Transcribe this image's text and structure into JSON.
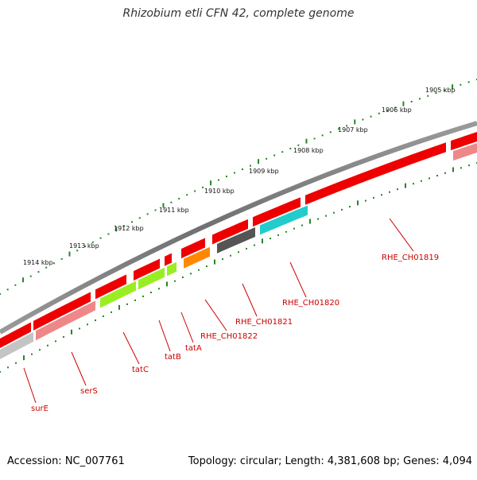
{
  "title": "Rhizobium etli CFN 42, complete genome",
  "footer": {
    "accession": "Accession: NC_007761",
    "summary": "Topology: circular; Length: 4,381,608 bp; Genes: 4,094"
  },
  "colors": {
    "backbone": "#7a7a7a",
    "forward_gene": "#ee0000",
    "pseudo_gene": "#ee8888",
    "grey_gene": "#c4c4c4",
    "green_gene": "#99ee22",
    "orange_gene": "#ff8800",
    "dark_gene": "#555555",
    "cyan_gene": "#22cccc",
    "label_color": "#cc0000",
    "tick_color": "#228822"
  },
  "scale_ticks": [
    {
      "label": "1905 kbp"
    },
    {
      "label": "1906 kbp"
    },
    {
      "label": "1907 kbp"
    },
    {
      "label": "1908 kbp"
    },
    {
      "label": "1909 kbp"
    },
    {
      "label": "1910 kbp"
    },
    {
      "label": "1911 kbp"
    },
    {
      "label": "1912 kbp"
    },
    {
      "label": "1913 kbp"
    },
    {
      "label": "1914 kbp"
    }
  ],
  "gene_labels": [
    {
      "name": "RHE_CH01819"
    },
    {
      "name": "RHE_CH01820"
    },
    {
      "name": "RHE_CH01821"
    },
    {
      "name": "RHE_CH01822"
    },
    {
      "name": "tatA"
    },
    {
      "name": "tatB"
    },
    {
      "name": "tatC"
    },
    {
      "name": "serS"
    },
    {
      "name": "surE"
    }
  ]
}
